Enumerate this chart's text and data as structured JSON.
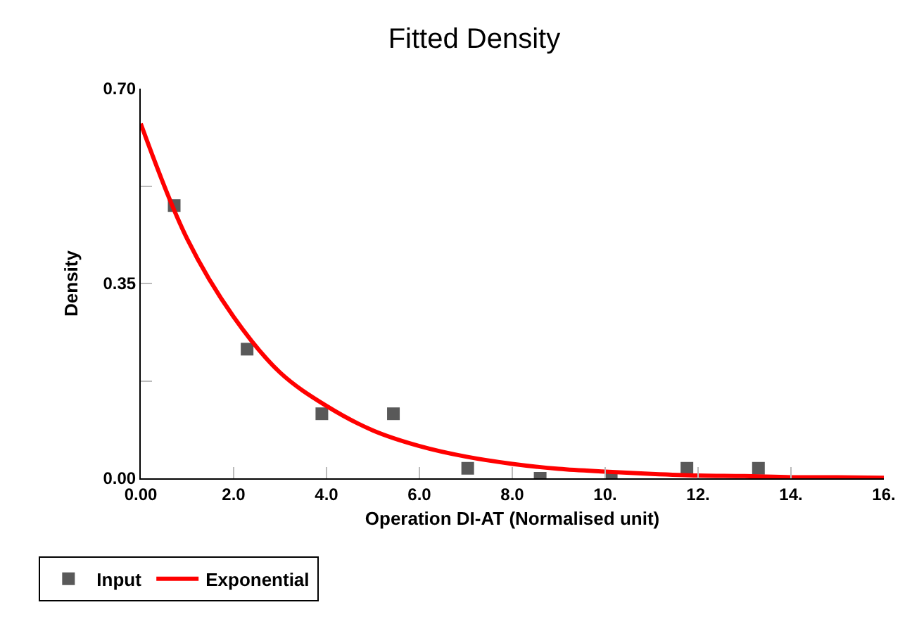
{
  "chart_data": {
    "type": "scatter",
    "title": "Fitted Density",
    "xlabel": "Operation DI-AT (Normalised unit)",
    "ylabel": "Density",
    "xlim": [
      0,
      16
    ],
    "xticks": [
      {
        "value": 0,
        "label": "0.00"
      },
      {
        "value": 2,
        "label": "2.0"
      },
      {
        "value": 4,
        "label": "4.0"
      },
      {
        "value": 6,
        "label": "6.0"
      },
      {
        "value": 8,
        "label": "8.0"
      },
      {
        "value": 10,
        "label": "10."
      },
      {
        "value": 12,
        "label": "12."
      },
      {
        "value": 14,
        "label": "14."
      },
      {
        "value": 16,
        "label": "16."
      }
    ],
    "ylim": [
      0,
      0.7
    ],
    "yticks": [
      {
        "value": 0,
        "label": "0.00"
      },
      {
        "value": 0.175,
        "label": null
      },
      {
        "value": 0.35,
        "label": "0.35"
      },
      {
        "value": 0.525,
        "label": null
      },
      {
        "value": 0.7,
        "label": "0.70"
      }
    ],
    "grid": false,
    "legend": "bottom left",
    "series": [
      {
        "name": "Input",
        "marker": "square",
        "color": "#595959",
        "x": [
          0.72,
          2.29,
          3.9,
          5.44,
          7.04,
          8.6,
          10.13,
          11.76,
          13.3
        ],
        "values": [
          0.49,
          0.232,
          0.116,
          0.116,
          0.018,
          0,
          0,
          0.018,
          0.018
        ]
      },
      {
        "name": "Exponential",
        "type": "line",
        "marker": "none",
        "line_style": "solid",
        "color": "#ff0000",
        "x": [
          0,
          1,
          2,
          3,
          4,
          5,
          6,
          7,
          8,
          9,
          10,
          11,
          12,
          13,
          14,
          15,
          16
        ],
        "values": [
          0.637,
          0.43,
          0.29,
          0.19,
          0.13,
          0.086,
          0.058,
          0.039,
          0.026,
          0.017,
          0.012,
          0.008,
          0.005,
          0.004,
          0.002,
          0.002,
          0.001
        ]
      }
    ]
  }
}
